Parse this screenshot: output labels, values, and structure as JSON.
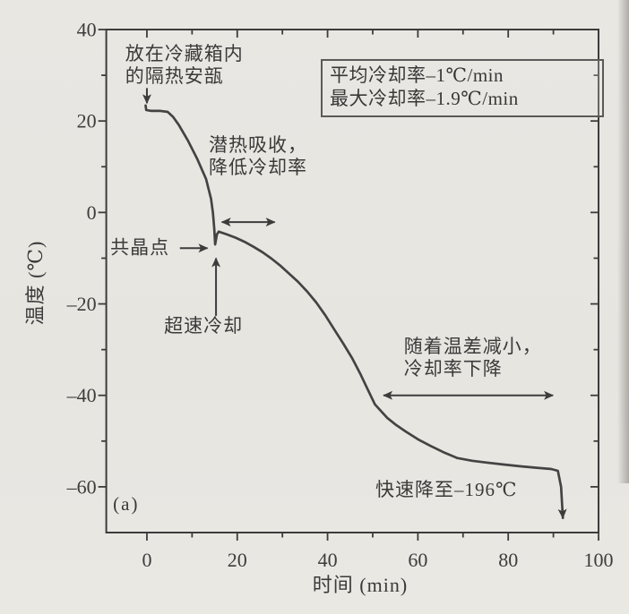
{
  "chart_data": {
    "type": "line",
    "title": "",
    "xlabel": "时间 (min)",
    "ylabel": "温度 (℃)",
    "xlim": [
      -9,
      100
    ],
    "ylim": [
      -70,
      40
    ],
    "grid": false,
    "x_major_ticks": [
      0,
      20,
      40,
      60,
      80,
      100
    ],
    "x_minor_ticks": [
      10,
      30,
      50,
      70,
      90
    ],
    "y_major_ticks": [
      40,
      20,
      0,
      -20,
      -40,
      -60
    ],
    "y_minor_ticks": [
      30,
      10,
      -10,
      -30,
      -50
    ],
    "x_tick_labels": [
      "0",
      "20",
      "40",
      "60",
      "80",
      "100"
    ],
    "y_tick_labels": [
      "40",
      "20",
      "0",
      "–20",
      "–40",
      "–60"
    ],
    "colors": {
      "ink": "#3c3c3c",
      "curve": "#434343",
      "paper": "#e8e6e1"
    },
    "series": [
      {
        "points": [
          [
            -0.3,
            23.4
          ],
          [
            -0.15,
            22.4
          ],
          [
            1.0,
            22.2
          ],
          [
            3.0,
            22.2
          ],
          [
            4.6,
            22.0
          ],
          [
            5.8,
            20.9
          ],
          [
            7.1,
            19.1
          ],
          [
            9.1,
            15.7
          ],
          [
            11.1,
            11.8
          ],
          [
            13.1,
            7.3
          ],
          [
            14.2,
            3.0
          ],
          [
            14.6,
            0.0
          ],
          [
            14.9,
            -3.5
          ],
          [
            15.1,
            -7.0
          ],
          [
            15.5,
            -4.8
          ],
          [
            15.9,
            -4.2
          ],
          [
            17.7,
            -4.8
          ],
          [
            19.6,
            -5.5
          ],
          [
            21.6,
            -6.4
          ],
          [
            23.6,
            -7.5
          ],
          [
            25.6,
            -8.7
          ],
          [
            27.6,
            -10.1
          ],
          [
            29.6,
            -11.7
          ],
          [
            31.5,
            -13.4
          ],
          [
            33.5,
            -15.2
          ],
          [
            35.5,
            -17.3
          ],
          [
            37.5,
            -19.7
          ],
          [
            39.5,
            -22.5
          ],
          [
            41.5,
            -25.6
          ],
          [
            43.5,
            -28.7
          ],
          [
            45.4,
            -31.8
          ],
          [
            47.2,
            -35.2
          ],
          [
            48.8,
            -38.5
          ],
          [
            50.5,
            -42.0
          ],
          [
            53.2,
            -44.9
          ],
          [
            55.2,
            -46.5
          ],
          [
            57.3,
            -47.9
          ],
          [
            60.0,
            -49.6
          ],
          [
            62.7,
            -51.0
          ],
          [
            65.6,
            -52.4
          ],
          [
            68.7,
            -53.7
          ],
          [
            72.0,
            -54.3
          ],
          [
            75.2,
            -54.7
          ],
          [
            78.8,
            -55.1
          ],
          [
            82.5,
            -55.5
          ],
          [
            86.0,
            -55.8
          ],
          [
            89.5,
            -56.1
          ],
          [
            91.0,
            -56.5
          ],
          [
            91.7,
            -60.0
          ],
          [
            92.1,
            -66.8
          ]
        ]
      }
    ],
    "info_box": {
      "lines": [
        "平均冷却率–1℃/min",
        "最大冷却率–1.9℃/min"
      ],
      "x": 38.5,
      "y": 33.6
    },
    "annotations": [
      {
        "text": "放在冷藏箱内\n的隔热安瓿",
        "x": -4.8,
        "y": 37.1,
        "align": "lt"
      },
      {
        "text": "潜热吸收，\n降低冷却率",
        "x": 13.7,
        "y": 17.1,
        "align": "lt"
      },
      {
        "text": "共晶点",
        "x": -8.1,
        "y": -7.8,
        "align": "lm"
      },
      {
        "text": "超速冷却",
        "x": 3.8,
        "y": -22.4,
        "align": "lt"
      },
      {
        "text": "随着温差减小，\n冷却率下降",
        "x": 56.9,
        "y": -26.9,
        "align": "lt"
      },
      {
        "text": "快速降至–196℃",
        "x": 50.6,
        "y": -58.3,
        "align": "lt"
      },
      {
        "text": "(a)",
        "x": -7.5,
        "y": -61.4,
        "align": "lt"
      }
    ],
    "arrows": [
      {
        "x1": 0.0,
        "y1": 27.2,
        "x2": 0.0,
        "y2": 23.9,
        "heads": 1
      },
      {
        "x1": 7.3,
        "y1": -7.8,
        "x2": 13.4,
        "y2": -7.8,
        "heads": 1
      },
      {
        "x1": 15.3,
        "y1": -22.6,
        "x2": 15.3,
        "y2": -10.0,
        "heads": 1
      },
      {
        "x1": 16.6,
        "y1": -2.1,
        "x2": 28.3,
        "y2": -2.1,
        "heads": 2
      },
      {
        "x1": 52.4,
        "y1": -40.0,
        "x2": 89.9,
        "y2": -40.0,
        "heads": 2
      }
    ]
  }
}
